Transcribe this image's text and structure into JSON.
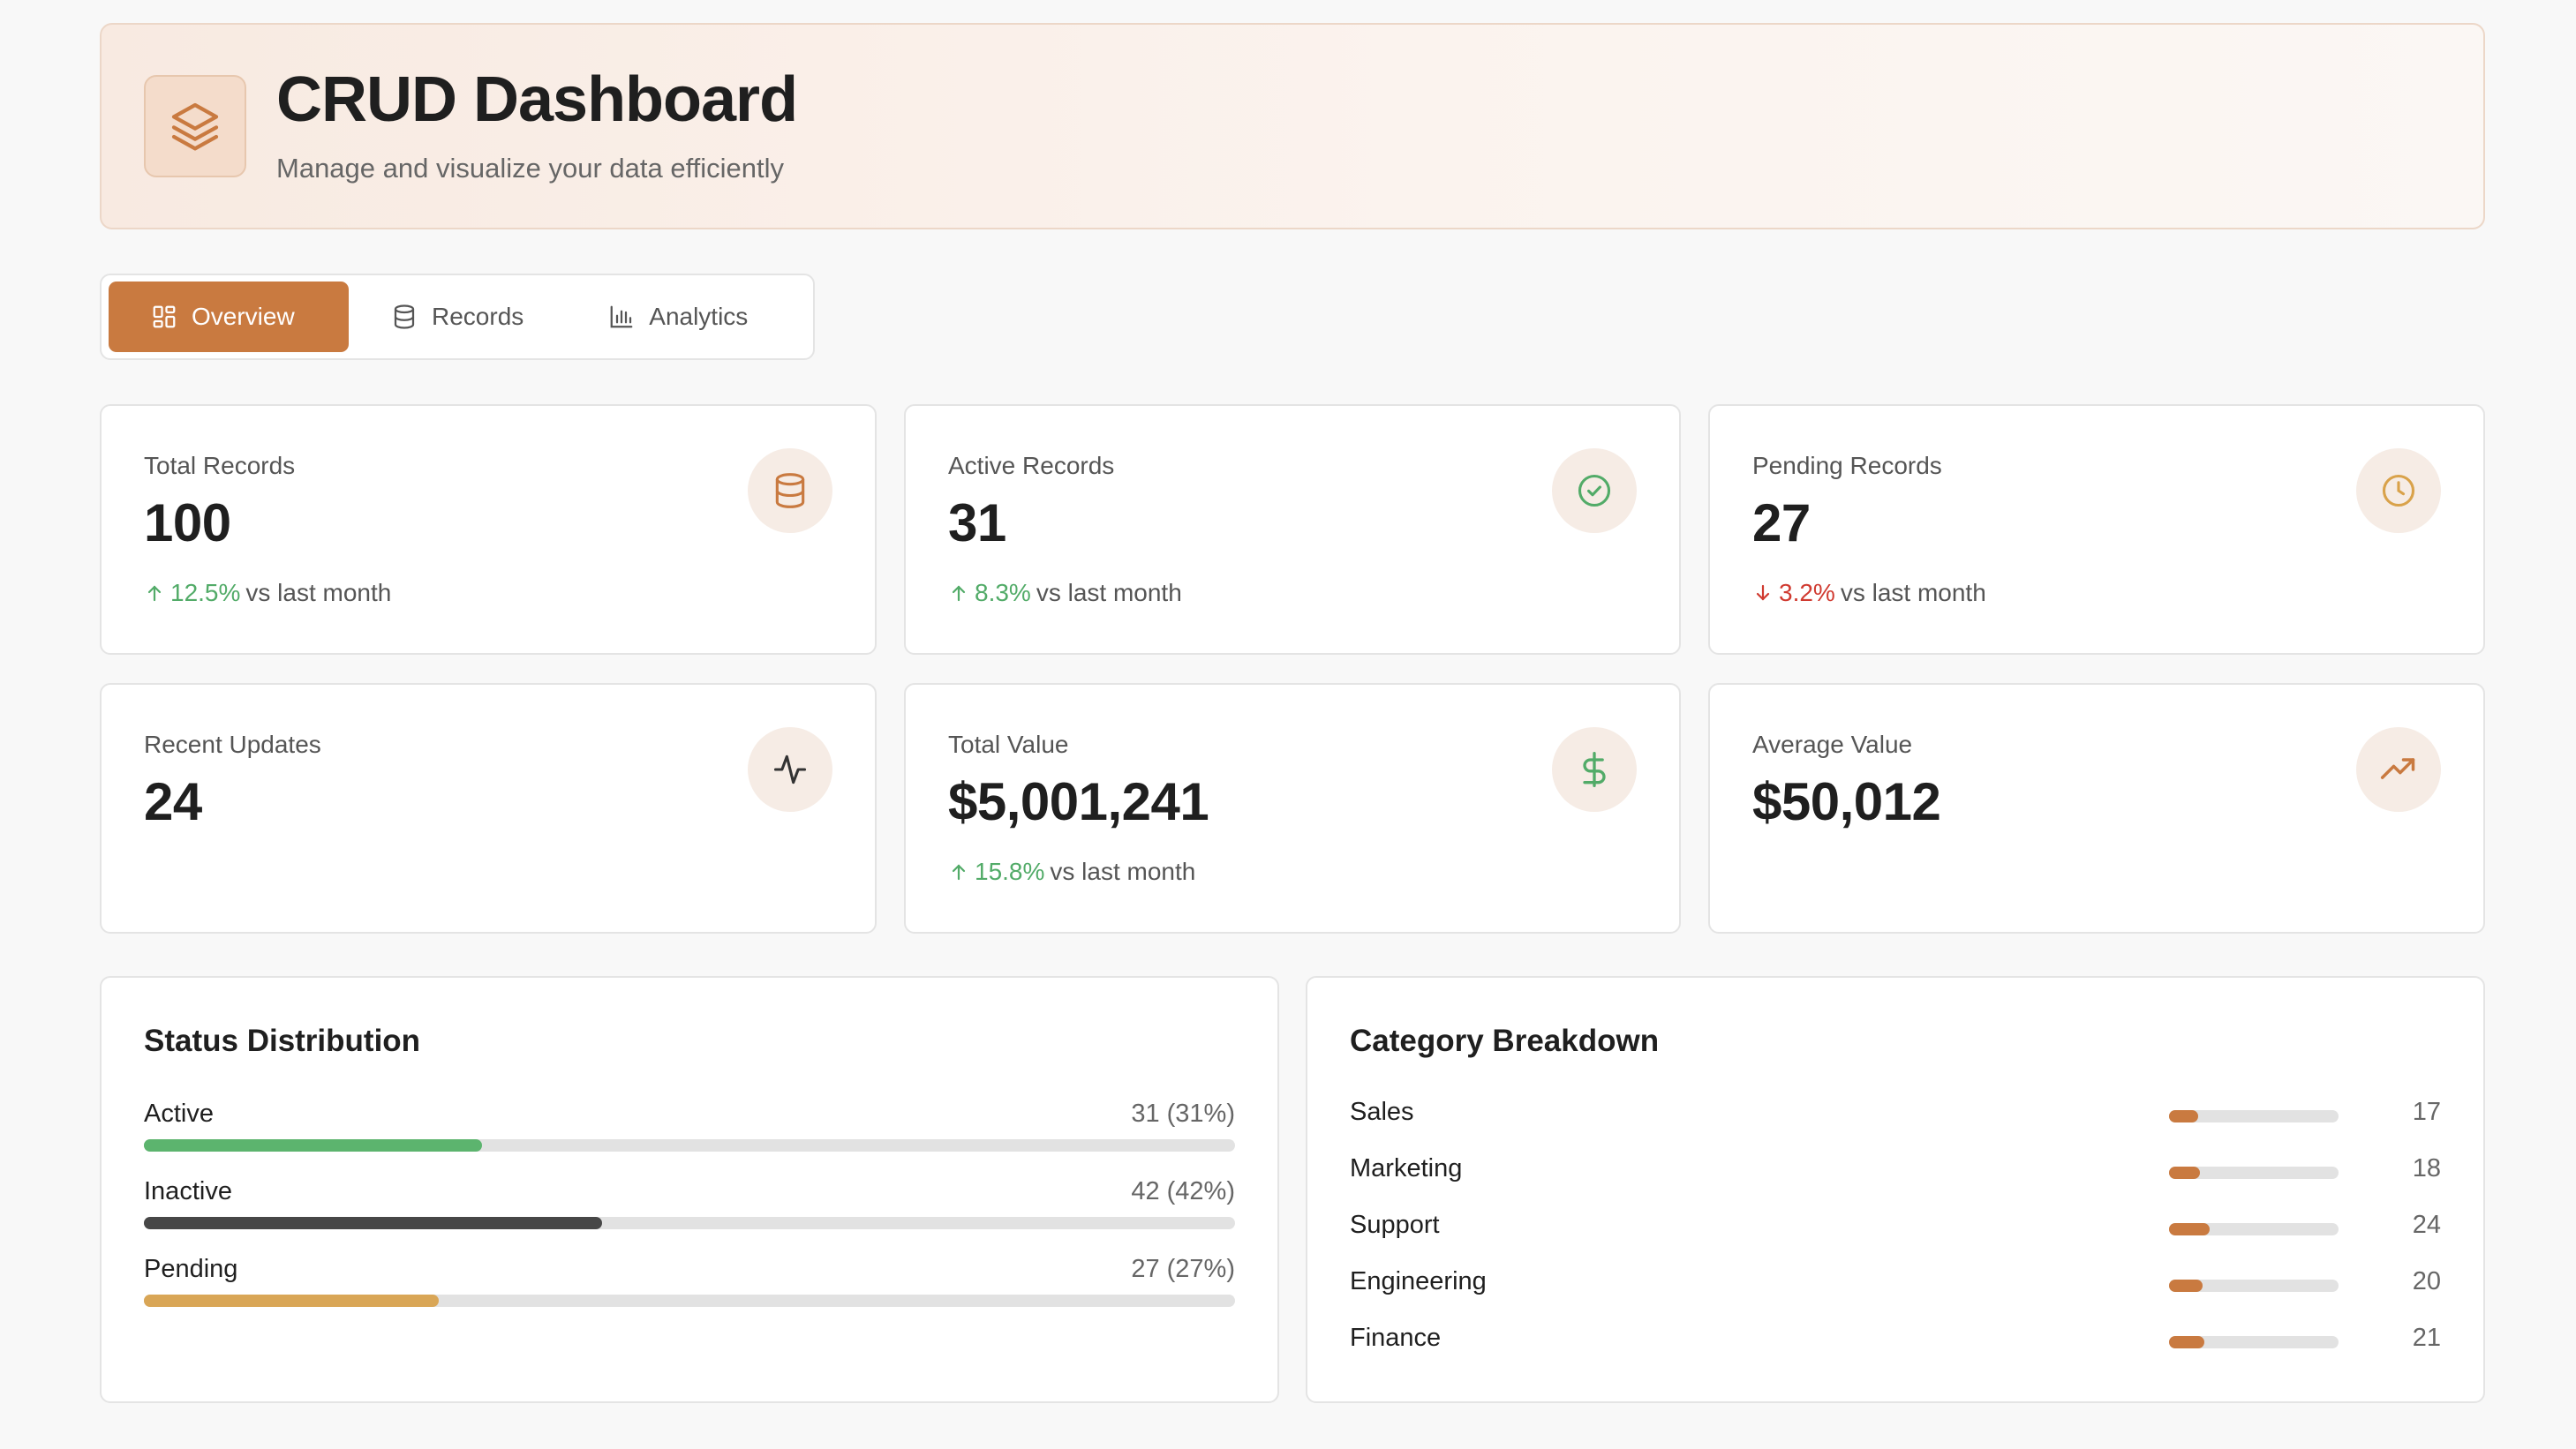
{
  "header": {
    "title": "CRUD Dashboard",
    "subtitle": "Manage and visualize your data efficiently",
    "logo_icon": "layers-icon"
  },
  "tabs": [
    {
      "label": "Overview",
      "icon": "grid-icon",
      "active": true
    },
    {
      "label": "Records",
      "icon": "database-icon",
      "active": false
    },
    {
      "label": "Analytics",
      "icon": "bar-chart-icon",
      "active": false
    }
  ],
  "stats": [
    {
      "label": "Total Records",
      "value": "100",
      "trend_value": "12.5%",
      "trend_dir": "up",
      "trend_text": "vs last month",
      "icon": "database-icon",
      "icon_color": "#c97a40"
    },
    {
      "label": "Active Records",
      "value": "31",
      "trend_value": "8.3%",
      "trend_dir": "up",
      "trend_text": "vs last month",
      "icon": "check-circle-icon",
      "icon_color": "#52ab68"
    },
    {
      "label": "Pending Records",
      "value": "27",
      "trend_value": "3.2%",
      "trend_dir": "down",
      "trend_text": "vs last month",
      "icon": "clock-icon",
      "icon_color": "#d9a24a"
    },
    {
      "label": "Recent Updates",
      "value": "24",
      "icon": "activity-icon",
      "icon_color": "#333333"
    },
    {
      "label": "Total Value",
      "value": "$5,001,241",
      "trend_value": "15.8%",
      "trend_dir": "up",
      "trend_text": "vs last month",
      "icon": "dollar-icon",
      "icon_color": "#52ab68"
    },
    {
      "label": "Average Value",
      "value": "$50,012",
      "icon": "trending-up-icon",
      "icon_color": "#c97a40"
    }
  ],
  "status_distribution": {
    "title": "Status Distribution",
    "items": [
      {
        "label": "Active",
        "count": "31 (31%)",
        "fraction": 0.31,
        "color": "#5cb46e"
      },
      {
        "label": "Inactive",
        "count": "42 (42%)",
        "fraction": 0.42,
        "color": "#474747"
      },
      {
        "label": "Pending",
        "count": "27 (27%)",
        "fraction": 0.27,
        "color": "#d9a656"
      }
    ]
  },
  "category_breakdown": {
    "title": "Category Breakdown",
    "items": [
      {
        "label": "Sales",
        "count": "17",
        "fraction": 0.17
      },
      {
        "label": "Marketing",
        "count": "18",
        "fraction": 0.18
      },
      {
        "label": "Support",
        "count": "24",
        "fraction": 0.24
      },
      {
        "label": "Engineering",
        "count": "20",
        "fraction": 0.2
      },
      {
        "label": "Finance",
        "count": "21",
        "fraction": 0.21
      }
    ]
  },
  "colors": {
    "accent": "#c97a40",
    "positive": "#52ab68",
    "negative": "#d03a30"
  }
}
